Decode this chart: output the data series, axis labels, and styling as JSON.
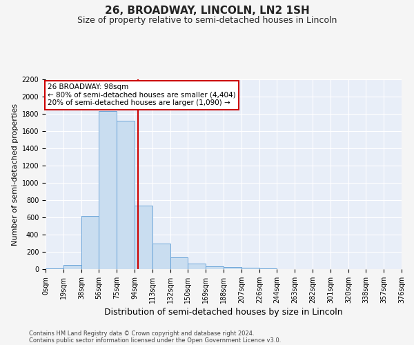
{
  "title": "26, BROADWAY, LINCOLN, LN2 1SH",
  "subtitle": "Size of property relative to semi-detached houses in Lincoln",
  "xlabel": "Distribution of semi-detached houses by size in Lincoln",
  "ylabel": "Number of semi-detached properties",
  "property_size": 98,
  "annotation_title": "26 BROADWAY: 98sqm",
  "annotation_line1": "← 80% of semi-detached houses are smaller (4,404)",
  "annotation_line2": "20% of semi-detached houses are larger (1,090) →",
  "footer_line1": "Contains HM Land Registry data © Crown copyright and database right 2024.",
  "footer_line2": "Contains public sector information licensed under the Open Government Licence v3.0.",
  "bin_labels": [
    "0sqm",
    "19sqm",
    "38sqm",
    "56sqm",
    "75sqm",
    "94sqm",
    "113sqm",
    "132sqm",
    "150sqm",
    "169sqm",
    "188sqm",
    "207sqm",
    "226sqm",
    "244sqm",
    "263sqm",
    "282sqm",
    "301sqm",
    "320sqm",
    "338sqm",
    "357sqm",
    "376sqm"
  ],
  "bar_values": [
    10,
    50,
    620,
    1830,
    1720,
    740,
    300,
    135,
    62,
    35,
    27,
    15,
    10,
    4,
    2,
    1,
    1,
    0,
    0,
    0
  ],
  "bar_color": "#c9ddf0",
  "bar_edge_color": "#5b9bd5",
  "red_line_x": 98,
  "bin_edges": [
    0,
    19,
    38,
    56,
    75,
    94,
    113,
    132,
    150,
    169,
    188,
    207,
    226,
    244,
    263,
    282,
    301,
    320,
    338,
    357,
    376
  ],
  "ylim": [
    0,
    2200
  ],
  "yticks": [
    0,
    200,
    400,
    600,
    800,
    1000,
    1200,
    1400,
    1600,
    1800,
    2000,
    2200
  ],
  "background_color": "#e8eef8",
  "grid_color": "#ffffff",
  "fig_background": "#f5f5f5",
  "box_color": "#cc0000",
  "title_fontsize": 11,
  "subtitle_fontsize": 9,
  "ylabel_fontsize": 8,
  "xlabel_fontsize": 9,
  "tick_fontsize": 7,
  "annot_fontsize": 7.5,
  "footer_fontsize": 6
}
